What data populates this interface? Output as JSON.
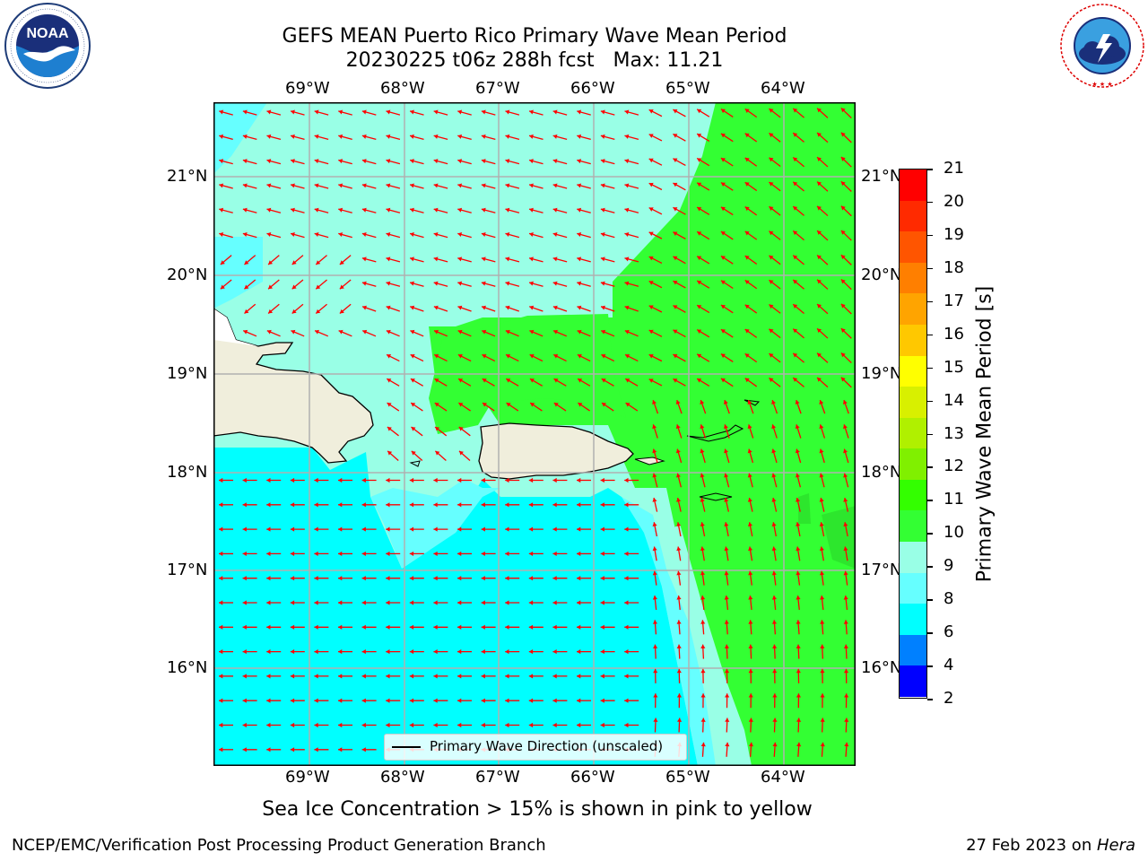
{
  "header": {
    "title_line1": "GEFS MEAN Puerto Rico Primary Wave Mean Period",
    "title_line2": "20230225 t06z 288h fcst   Max: 11.21"
  },
  "logos": {
    "noaa_text": "NOAA",
    "noaa_ring_text": "NATIONAL OCEANIC AND ATMOSPHERIC ADMINISTRATION · U.S. DEPARTMENT OF COMMERCE",
    "nws_ring_text": "NATIONAL WEATHER SERVICE"
  },
  "map": {
    "lon_labels": [
      "69°W",
      "68°W",
      "67°W",
      "66°W",
      "65°W",
      "64°W"
    ],
    "lat_labels": [
      "21°N",
      "20°N",
      "19°N",
      "18°N",
      "17°N",
      "16°N"
    ],
    "legend_label": "Primary Wave Direction (unscaled)",
    "arrow_color": "#ff0000",
    "land_color": "#f0eedc"
  },
  "colorbar": {
    "label": "Primary Wave Mean Period [s]",
    "ticks": [
      "21",
      "20",
      "19",
      "18",
      "17",
      "16",
      "15",
      "14",
      "13",
      "12",
      "11",
      "10",
      "9",
      "8",
      "6",
      "4",
      "2"
    ],
    "colors_top_to_bottom": [
      "#ff0000",
      "#ff2a00",
      "#ff5500",
      "#ff7f00",
      "#ffa400",
      "#ffc800",
      "#ffff00",
      "#d8f000",
      "#b0f000",
      "#80f000",
      "#33ff00",
      "#33ff33",
      "#99ffe6",
      "#66ffff",
      "#00ffff",
      "#0080ff",
      "#0000ff"
    ]
  },
  "bottom_note": "Sea Ice Concentration > 15% is shown in pink to yellow",
  "footer": {
    "left": "NCEP/EMC/Verification Post Processing Product Generation Branch",
    "date": "27 Feb 2023 on ",
    "machine": "Hera"
  }
}
